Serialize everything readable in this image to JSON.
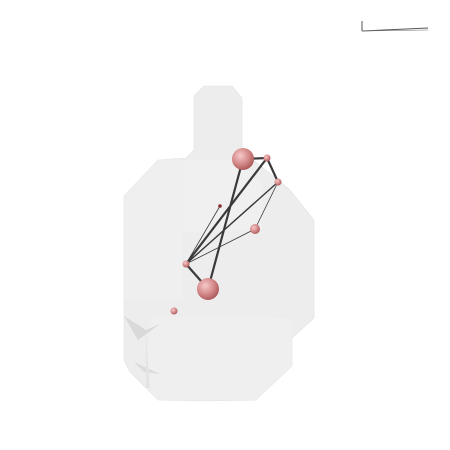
{
  "colors": {
    "background": "#ffffff",
    "brain_fill": "#ececec",
    "brain_fill_light": "#f3f3f3",
    "brain_shadow": "#dcdcdc",
    "edge": "#3a3a3a",
    "node_base": "#d07e7e",
    "node_highlight": "#f2b8b8",
    "node_dark": "#8a2f2f",
    "scale_bar": "#555555"
  },
  "scale_bar": {
    "label": "",
    "visible": true
  },
  "nodes": [
    {
      "id": "n1",
      "size": "large"
    },
    {
      "id": "n2",
      "size": "small"
    },
    {
      "id": "n3",
      "size": "small"
    },
    {
      "id": "n4",
      "size": "tiny"
    },
    {
      "id": "n5",
      "size": "medium"
    },
    {
      "id": "n6",
      "size": "small"
    },
    {
      "id": "n7",
      "size": "large"
    },
    {
      "id": "n8",
      "size": "small"
    }
  ],
  "edges": [
    {
      "source": "n1",
      "target": "n2",
      "weight": "thick"
    },
    {
      "source": "n1",
      "target": "n7",
      "weight": "thick"
    },
    {
      "source": "n2",
      "target": "n3",
      "weight": "thick"
    },
    {
      "source": "n2",
      "target": "n6",
      "weight": "thick"
    },
    {
      "source": "n6",
      "target": "n3",
      "weight": "medium"
    },
    {
      "source": "n3",
      "target": "n5",
      "weight": "thin"
    },
    {
      "source": "n5",
      "target": "n6",
      "weight": "thin"
    },
    {
      "source": "n6",
      "target": "n4",
      "weight": "thin"
    },
    {
      "source": "n6",
      "target": "n7",
      "weight": "thick"
    }
  ]
}
